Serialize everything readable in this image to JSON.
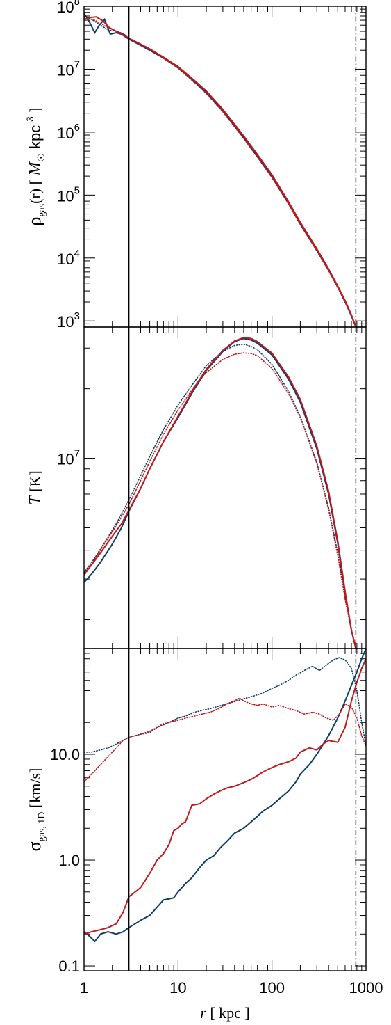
{
  "chart_data": [
    {
      "type": "line",
      "panel": "density",
      "xscale": "log",
      "yscale": "log",
      "xlim": [
        1,
        1000
      ],
      "ylim": [
        800,
        100000000
      ],
      "ylabel": {
        "main": "ρ",
        "sub": "gas",
        "arg": "(r) [ ",
        "msym": "M",
        "msun": "☉",
        "unit": " kpc",
        "exp": "-3",
        "close": " ]"
      },
      "yticks": [
        {
          "value": 1000,
          "base": "10",
          "exp": "3"
        },
        {
          "value": 10000,
          "base": "10",
          "exp": "4"
        },
        {
          "value": 100000,
          "base": "10",
          "exp": "5"
        },
        {
          "value": 1000000,
          "base": "10",
          "exp": "6"
        },
        {
          "value": 10000000,
          "base": "10",
          "exp": "7"
        },
        {
          "value": 100000000,
          "base": "10",
          "exp": "8"
        }
      ],
      "series": [
        {
          "color": "#0a3d6b",
          "style": "solid",
          "x": [
            1,
            1.15,
            1.3,
            1.45,
            1.65,
            1.9,
            2.2,
            2.5,
            3,
            4,
            5,
            7,
            10,
            15,
            20,
            30,
            50,
            70,
            100,
            150,
            200,
            300,
            400,
            500,
            600,
            700,
            780
          ],
          "y": [
            78000000,
            55000000,
            38000000,
            50000000,
            62000000,
            36000000,
            38000000,
            36000000,
            30000000,
            24000000,
            20000000,
            15000000,
            10500000,
            6300000,
            4300000,
            2200000,
            830000,
            420000,
            200000,
            75000,
            36000,
            13500,
            6500,
            3500,
            2000,
            1200,
            800
          ]
        },
        {
          "color": "#0a3d6b",
          "style": "dotted",
          "x": [
            1,
            1.2,
            1.5,
            1.8,
            2.2,
            2.6,
            3,
            4,
            5,
            7,
            10,
            15,
            20,
            30,
            50,
            70,
            100,
            150,
            200,
            300,
            400,
            500,
            600,
            700,
            780
          ],
          "y": [
            70000000,
            62000000,
            50000000,
            42000000,
            40000000,
            37000000,
            31000000,
            25000000,
            21000000,
            15500000,
            10800000,
            6300000,
            4200000,
            2150000,
            800000,
            400000,
            190000,
            72000,
            34000,
            13000,
            6300,
            3400,
            2000,
            1200,
            800
          ]
        },
        {
          "color": "#c0191c",
          "style": "solid",
          "x": [
            1,
            1.15,
            1.35,
            1.6,
            1.85,
            2.2,
            2.5,
            3,
            4,
            5,
            7,
            10,
            15,
            20,
            30,
            50,
            70,
            100,
            150,
            200,
            300,
            400,
            500,
            600,
            700,
            780
          ],
          "y": [
            62000000,
            66000000,
            68000000,
            58000000,
            46000000,
            40000000,
            37000000,
            31000000,
            25000000,
            21000000,
            15500000,
            11000000,
            6600000,
            4500000,
            2300000,
            870000,
            440000,
            210000,
            78000,
            37000,
            14000,
            6700,
            3600,
            2100,
            1250,
            800
          ]
        },
        {
          "color": "#c0191c",
          "style": "dotted",
          "x": [
            1,
            1.3,
            1.7,
            2.2,
            3,
            4,
            5,
            7,
            10,
            15,
            20,
            30,
            50,
            70,
            100,
            150,
            200,
            300,
            400,
            500,
            600,
            700,
            780
          ],
          "y": [
            66000000,
            60000000,
            48000000,
            40000000,
            31000000,
            24500000,
            20500000,
            15000000,
            10500000,
            6100000,
            4100000,
            2100000,
            790000,
            400000,
            190000,
            72000,
            34000,
            13000,
            6300,
            3400,
            2000,
            1200,
            800
          ]
        }
      ]
    },
    {
      "type": "line",
      "panel": "temperature",
      "xscale": "log",
      "yscale": "log",
      "xlim": [
        1,
        1000
      ],
      "ylim": [
        1500000,
        37000000
      ],
      "ylabel": {
        "main": "T",
        "unit": "  [K]"
      },
      "yticks": [
        {
          "value": 10000000,
          "base": "10",
          "exp": "7"
        }
      ],
      "series": [
        {
          "color": "#0a3d6b",
          "style": "solid",
          "x": [
            1,
            1.2,
            1.5,
            2,
            2.5,
            3,
            4,
            5,
            7,
            10,
            15,
            20,
            30,
            40,
            50,
            60,
            70,
            100,
            150,
            200,
            300,
            400,
            500,
            600,
            700,
            780
          ],
          "y": [
            2900000,
            3150000,
            3550000,
            4250000,
            5000000,
            5900000,
            7400000,
            9000000,
            11800000,
            15000000,
            20000000,
            24000000,
            29000000,
            32000000,
            33000000,
            32500000,
            31500000,
            28000000,
            22000000,
            17500000,
            11000000,
            7000000,
            4300000,
            2600000,
            1800000,
            1500000
          ]
        },
        {
          "color": "#0a3d6b",
          "style": "dotted",
          "x": [
            1,
            1.3,
            1.7,
            2.2,
            3,
            4,
            5,
            7,
            10,
            15,
            20,
            30,
            40,
            50,
            60,
            70,
            100,
            150,
            200,
            300,
            400,
            500,
            600,
            700,
            780
          ],
          "y": [
            3200000,
            3700000,
            4400000,
            5200000,
            6600000,
            8400000,
            10200000,
            13300000,
            17000000,
            21500000,
            25200000,
            29000000,
            30800000,
            31200000,
            30500000,
            29500000,
            25500000,
            19500000,
            15200000,
            9600000,
            6100000,
            3900000,
            2500000,
            1800000,
            1500000
          ]
        },
        {
          "color": "#c0191c",
          "style": "solid",
          "x": [
            1,
            1.2,
            1.5,
            2,
            2.5,
            3,
            4,
            5,
            7,
            10,
            15,
            20,
            30,
            40,
            50,
            60,
            70,
            100,
            150,
            200,
            300,
            400,
            500,
            600,
            700,
            780
          ],
          "y": [
            3150000,
            3450000,
            3900000,
            4600000,
            5200000,
            5950000,
            7400000,
            9000000,
            11800000,
            15200000,
            20300000,
            24300000,
            29300000,
            32200000,
            33300000,
            33000000,
            32000000,
            28500000,
            22500000,
            18000000,
            11300000,
            7200000,
            4400000,
            2650000,
            1800000,
            1500000
          ]
        },
        {
          "color": "#c0191c",
          "style": "dotted",
          "x": [
            1,
            1.3,
            1.7,
            2.2,
            3,
            4,
            5,
            7,
            10,
            15,
            20,
            30,
            40,
            50,
            60,
            70,
            100,
            150,
            200,
            300,
            400,
            500,
            600,
            700,
            780
          ],
          "y": [
            3100000,
            3650000,
            4350000,
            5100000,
            6300000,
            8000000,
            9700000,
            12700000,
            16200000,
            20500000,
            23500000,
            26800000,
            28200000,
            28600000,
            28400000,
            27800000,
            24500000,
            19000000,
            15000000,
            9500000,
            6000000,
            3800000,
            2450000,
            1800000,
            1500000
          ]
        }
      ]
    },
    {
      "type": "line",
      "panel": "dispersion",
      "xscale": "log",
      "yscale": "log",
      "xlim": [
        1,
        1000
      ],
      "ylim": [
        0.09,
        100
      ],
      "xlabel": {
        "main": "r",
        "unit": "  [ kpc ]"
      },
      "xticks": [
        {
          "value": 1,
          "label": "1"
        },
        {
          "value": 10,
          "label": "10"
        },
        {
          "value": 100,
          "label": "100"
        },
        {
          "value": 1000,
          "label": "1000"
        }
      ],
      "ylabel": {
        "main": "σ",
        "sub": "gas, 1D",
        "unit": " [km/s]"
      },
      "yticks": [
        {
          "value": 0.1,
          "label": "0.1"
        },
        {
          "value": 1,
          "label": "1.0"
        },
        {
          "value": 10,
          "label": "10.0"
        }
      ],
      "series": [
        {
          "color": "#0a3d6b",
          "style": "solid",
          "x": [
            1,
            1.15,
            1.3,
            1.5,
            1.8,
            2.2,
            2.6,
            3,
            3.5,
            4,
            5,
            6,
            7,
            8,
            9,
            10,
            12,
            14,
            17,
            20,
            24,
            28,
            33,
            40,
            50,
            60,
            70,
            80,
            100,
            120,
            150,
            180,
            200,
            250,
            300,
            400,
            500,
            600,
            700,
            800,
            900,
            1000
          ],
          "y": [
            0.21,
            0.19,
            0.17,
            0.2,
            0.21,
            0.2,
            0.21,
            0.23,
            0.25,
            0.27,
            0.3,
            0.36,
            0.42,
            0.43,
            0.44,
            0.5,
            0.6,
            0.68,
            0.85,
            1.0,
            1.1,
            1.3,
            1.5,
            1.8,
            2.0,
            2.3,
            2.6,
            2.9,
            3.3,
            3.8,
            4.5,
            5.5,
            6.5,
            8.0,
            10.0,
            15.0,
            22.0,
            32.0,
            45.0,
            60.0,
            80.0,
            100.0
          ]
        },
        {
          "color": "#0a3d6b",
          "style": "dotted",
          "x": [
            1,
            1.2,
            1.5,
            1.8,
            2.2,
            2.6,
            3,
            3.5,
            4,
            5,
            6,
            7,
            8,
            10,
            12,
            15,
            18,
            22,
            27,
            33,
            40,
            50,
            60,
            70,
            80,
            100,
            120,
            150,
            180,
            220,
            270,
            320,
            380,
            450,
            520,
            600,
            700,
            800,
            900,
            1000
          ],
          "y": [
            10.5,
            10.5,
            11.0,
            11.5,
            12.5,
            13.5,
            14.5,
            15.0,
            15.5,
            16.0,
            18.0,
            19.0,
            20.0,
            22.0,
            23.0,
            25.0,
            26.0,
            27.0,
            28.5,
            30.0,
            31.5,
            33.5,
            35.0,
            36.5,
            38.0,
            42.0,
            45.0,
            50.0,
            56.0,
            62.0,
            68.0,
            62.0,
            70.0,
            78.0,
            82.0,
            78.0,
            65.0,
            40.0,
            20.0,
            12.0
          ]
        },
        {
          "color": "#c0191c",
          "style": "solid",
          "x": [
            1,
            1.2,
            1.5,
            1.8,
            2.2,
            2.6,
            3,
            3.5,
            4,
            5,
            6,
            7,
            8,
            9,
            10,
            11,
            12,
            14,
            17,
            20,
            24,
            28,
            33,
            40,
            50,
            60,
            70,
            80,
            100,
            120,
            150,
            180,
            200,
            250,
            300,
            350,
            400,
            500,
            600,
            700,
            800,
            900,
            1000
          ],
          "y": [
            0.2,
            0.21,
            0.22,
            0.23,
            0.25,
            0.32,
            0.45,
            0.5,
            0.55,
            0.75,
            1.0,
            1.15,
            1.4,
            1.9,
            2.0,
            2.2,
            2.3,
            3.3,
            3.4,
            3.8,
            4.2,
            4.5,
            4.8,
            5.0,
            5.4,
            5.8,
            6.3,
            6.8,
            7.5,
            8.0,
            8.5,
            9.2,
            10.5,
            11.5,
            11.0,
            12.5,
            13.5,
            13.0,
            18.0,
            32.0,
            48.0,
            65.0,
            80.0
          ]
        },
        {
          "color": "#c0191c",
          "style": "dotted",
          "x": [
            1,
            1.2,
            1.5,
            1.8,
            2.2,
            2.6,
            3,
            3.5,
            4,
            5,
            6,
            7,
            8,
            10,
            12,
            15,
            18,
            22,
            27,
            33,
            40,
            45,
            50,
            60,
            70,
            80,
            100,
            120,
            150,
            180,
            220,
            270,
            320,
            380,
            450,
            520,
            600,
            700,
            800,
            900,
            1000
          ],
          "y": [
            5.5,
            6.5,
            8.0,
            9.5,
            11.5,
            13.5,
            14.5,
            15.0,
            15.5,
            16.5,
            18.0,
            19.5,
            20.0,
            21.0,
            22.0,
            23.0,
            24.0,
            25.0,
            27.0,
            30.0,
            32.0,
            34.0,
            32.0,
            30.0,
            29.0,
            30.0,
            28.0,
            29.0,
            27.0,
            26.0,
            24.0,
            25.0,
            24.0,
            22.0,
            21.0,
            24.0,
            30.0,
            28.0,
            22.0,
            15.0,
            12.0
          ]
        }
      ]
    }
  ],
  "reference_lines": [
    {
      "x": 3,
      "style": "solid"
    },
    {
      "x": 780,
      "style": "dashdot"
    }
  ]
}
